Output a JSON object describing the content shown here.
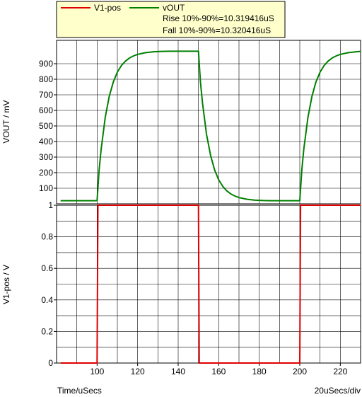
{
  "legend": {
    "entries": [
      {
        "name": "V1-pos",
        "color": "#e00000"
      },
      {
        "name": "vOUT",
        "color": "#008000"
      }
    ],
    "measurements": [
      "Rise 10%-90%=10.319416uS",
      "Fall 10%-90%=10.320416uS"
    ],
    "background": "#ffffcc"
  },
  "footer": {
    "x_axis_label": "Time/uSecs",
    "scale_label": "20uSecs/div"
  },
  "chart_data": [
    {
      "type": "line",
      "title": "",
      "xlabel": "Time/uSecs",
      "ylabel": "VOUT / mV",
      "xlim": [
        80,
        230
      ],
      "ylim": [
        0,
        1050
      ],
      "y_ticks": [
        100,
        200,
        300,
        400,
        500,
        600,
        700,
        800,
        900
      ],
      "grid": true,
      "series": [
        {
          "name": "vOUT",
          "color": "#008000",
          "x": [
            82,
            100,
            101,
            102,
            104,
            106,
            108,
            110,
            112,
            114,
            116,
            118,
            120,
            124,
            128,
            132,
            136,
            140,
            144,
            148,
            150,
            151,
            152,
            154,
            156,
            158,
            160,
            162,
            164,
            166,
            168,
            170,
            174,
            178,
            182,
            186,
            190,
            194,
            198,
            200,
            201,
            202,
            204,
            206,
            208,
            210,
            212,
            214,
            216,
            218,
            220,
            224,
            228,
            230
          ],
          "y": [
            20,
            20,
            218,
            352,
            554,
            690,
            783,
            846,
            888,
            917,
            937,
            950,
            960,
            971,
            977,
            979,
            980,
            980,
            980,
            980,
            980,
            782,
            648,
            446,
            310,
            217,
            154,
            112,
            83,
            63,
            50,
            40,
            29,
            23,
            21,
            20,
            20,
            20,
            20,
            20,
            218,
            352,
            554,
            690,
            783,
            846,
            888,
            917,
            937,
            950,
            960,
            971,
            977,
            979
          ]
        }
      ]
    },
    {
      "type": "line",
      "title": "",
      "xlabel": "Time/uSecs",
      "ylabel": "V1-pos / V",
      "xlim": [
        80,
        230
      ],
      "ylim": [
        0,
        1
      ],
      "x_ticks": [
        100,
        120,
        140,
        160,
        180,
        200,
        220
      ],
      "y_ticks": [
        0,
        0.2,
        0.4,
        0.6,
        0.8,
        1
      ],
      "grid": true,
      "series": [
        {
          "name": "V1-pos",
          "color": "#e00000",
          "x": [
            82,
            100,
            100.4,
            150,
            150.4,
            200,
            200.4,
            230
          ],
          "y": [
            0,
            0,
            1,
            1,
            0,
            0,
            1,
            1
          ]
        }
      ]
    }
  ]
}
